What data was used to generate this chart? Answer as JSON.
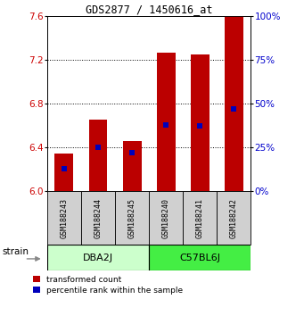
{
  "title": "GDS2877 / 1450616_at",
  "samples": [
    "GSM188243",
    "GSM188244",
    "GSM188245",
    "GSM188240",
    "GSM188241",
    "GSM188242"
  ],
  "transformed_counts": [
    6.34,
    6.65,
    6.46,
    7.26,
    7.25,
    7.6
  ],
  "percentile_ranks": [
    13,
    25,
    22,
    38,
    37,
    47
  ],
  "bar_bottom": 6.0,
  "ylim_left": [
    6.0,
    7.6
  ],
  "ylim_right": [
    0,
    100
  ],
  "yticks_left": [
    6.0,
    6.4,
    6.8,
    7.2,
    7.6
  ],
  "yticks_right": [
    0,
    25,
    50,
    75,
    100
  ],
  "bar_color": "#bb0000",
  "percentile_color": "#0000bb",
  "bar_width": 0.55,
  "left_tick_color": "#cc0000",
  "right_tick_color": "#0000cc",
  "group_box_color_dba": "#ccffcc",
  "group_box_color_c57": "#44ee44",
  "sample_box_color": "#d0d0d0",
  "strain_label": "strain",
  "legend_red_label": "transformed count",
  "legend_blue_label": "percentile rank within the sample"
}
